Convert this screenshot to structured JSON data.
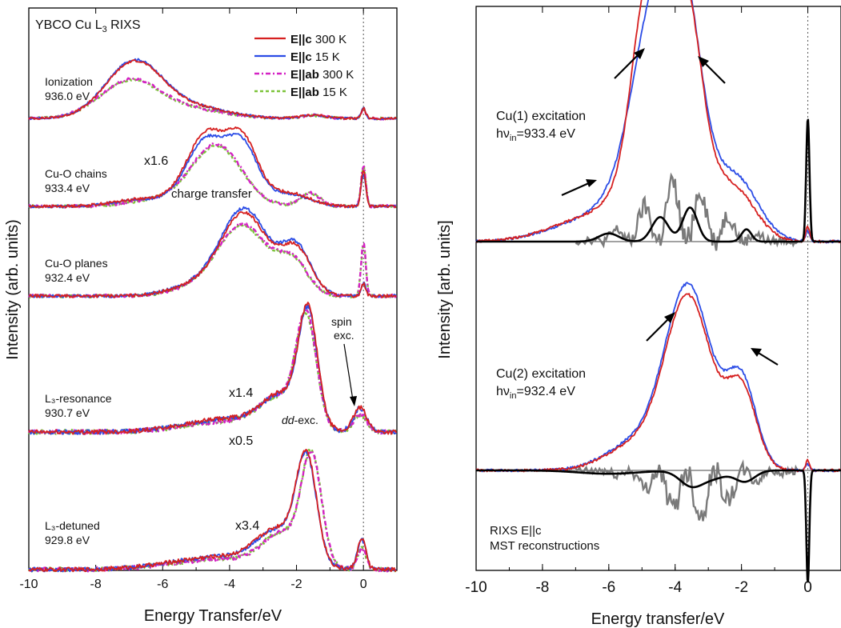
{
  "colors": {
    "c300": "#d62020",
    "c15": "#2b4ce6",
    "ab300": "#d422c4",
    "ab15": "#7cc43a",
    "difference": "#7a7a7a",
    "mst": "#000000"
  },
  "chart_data": [
    {
      "type": "line",
      "title": "YBCO Cu L₃ RIXS",
      "xlabel": "Energy Transfer/eV",
      "ylabel": "Intensity (arb. units)",
      "xlim": [
        -10,
        1
      ],
      "x_ticks": [
        -10,
        -8,
        -6,
        -4,
        -2,
        0
      ],
      "x_tick_labels": [
        "-10",
        "-8",
        "-6",
        "-4",
        "-2",
        "0"
      ],
      "legend_position": "top-right",
      "grid": false,
      "series_legend": [
        {
          "bold": "E||c",
          "rest": " 300 K",
          "style": "solid",
          "color_key": "c300"
        },
        {
          "bold": "E||c",
          "rest": " 15 K",
          "style": "solid",
          "color_key": "c15"
        },
        {
          "bold": "E||ab",
          "rest": " 300 K",
          "style": "dashed",
          "color_key": "ab300"
        },
        {
          "bold": "E||ab",
          "rest": " 15 K",
          "style": "dashed",
          "color_key": "ab15"
        }
      ],
      "panels": [
        {
          "label_line1": "Ionization",
          "label_line2": "936.0 eV",
          "scale_labels": [],
          "peak_values": {
            "c300": 0.9,
            "c15": 0.92,
            "ab300": 0.62,
            "ab15": 0.6
          },
          "components": {
            "c": [
              {
                "center": -6.85,
                "width": 0.85,
                "amp": 1.0
              },
              {
                "center": -5.0,
                "width": 1.0,
                "amp": 0.18
              },
              {
                "center": 0.0,
                "width": 0.07,
                "amp": 0.18
              },
              {
                "center": -1.5,
                "width": 0.35,
                "amp": 0.06
              }
            ],
            "ab": [
              {
                "center": -6.95,
                "width": 0.9,
                "amp": 1.0
              },
              {
                "center": -5.0,
                "width": 1.0,
                "amp": 0.2
              },
              {
                "center": 0.0,
                "width": 0.07,
                "amp": 0.25
              },
              {
                "center": -1.5,
                "width": 0.35,
                "amp": 0.08
              }
            ]
          }
        },
        {
          "label_line1": "Cu-O chains",
          "label_line2": "933.4 eV",
          "scale_labels": [
            {
              "text": "x1.6",
              "x": -5.9,
              "level": 0.62
            },
            {
              "text": "charge transfer",
              "x": -4.4,
              "level": -0.12
            }
          ],
          "peak_values": {
            "c300": 0.98,
            "c15": 0.9,
            "ab300": 0.78,
            "ab15": 0.76
          },
          "components": {
            "c": [
              {
                "center": -4.75,
                "width": 0.55,
                "amp": 0.85
              },
              {
                "center": -3.6,
                "width": 0.45,
                "amp": 0.8
              },
              {
                "center": -4.2,
                "width": 0.8,
                "amp": 0.35
              },
              {
                "center": -6.5,
                "width": 0.9,
                "amp": 0.12
              },
              {
                "center": -2.2,
                "width": 0.6,
                "amp": 0.2
              },
              {
                "center": 0.0,
                "width": 0.07,
                "amp": 0.55
              }
            ],
            "ab": [
              {
                "center": -4.4,
                "width": 0.75,
                "amp": 1.0
              },
              {
                "center": -1.6,
                "width": 0.3,
                "amp": 0.22
              },
              {
                "center": -6.3,
                "width": 0.8,
                "amp": 0.1
              },
              {
                "center": 0.0,
                "width": 0.07,
                "amp": 0.65
              }
            ]
          }
        },
        {
          "label_line1": "Cu-O planes",
          "label_line2": "932.4 eV",
          "scale_labels": [],
          "peak_values": {
            "c300": 0.95,
            "c15": 1.0,
            "ab300": 0.82,
            "ab15": 0.8
          },
          "components": {
            "c": [
              {
                "center": -3.55,
                "width": 0.7,
                "amp": 1.0
              },
              {
                "center": -2.0,
                "width": 0.45,
                "amp": 0.55
              },
              {
                "center": -5.0,
                "width": 0.8,
                "amp": 0.12
              },
              {
                "center": 0.0,
                "width": 0.07,
                "amp": 0.15
              }
            ],
            "ab": [
              {
                "center": -3.6,
                "width": 0.75,
                "amp": 1.0
              },
              {
                "center": -2.1,
                "width": 0.45,
                "amp": 0.45
              },
              {
                "center": -5.0,
                "width": 0.8,
                "amp": 0.1
              },
              {
                "center": 0.0,
                "width": 0.07,
                "amp": 0.75
              }
            ]
          }
        },
        {
          "label_line1": "L₃-resonance",
          "label_line2": "930.7 eV",
          "scale_labels": [
            {
              "text": "x1.4",
              "x": -3.5,
              "level": 0.47
            },
            {
              "text": "x0.5",
              "x": -3.6,
              "level": -0.1
            },
            {
              "text": "dd-exc.",
              "x": -1.95,
              "level": -0.03,
              "italic_prefix": "dd"
            }
          ],
          "annotation": {
            "text_line1": "spin",
            "text_line2": "exc.",
            "arrow_from_x": -0.35,
            "arrow_to_x": -0.2
          },
          "peak_values": {
            "c300": 1.0,
            "c15": 0.98,
            "ab300": 0.95,
            "ab15": 0.93
          },
          "components": {
            "c": [
              {
                "center": -1.65,
                "width": 0.28,
                "amp": 1.0
              },
              {
                "center": -2.4,
                "width": 0.6,
                "amp": 0.3
              },
              {
                "center": -4.0,
                "width": 1.3,
                "amp": 0.12
              },
              {
                "center": -0.1,
                "width": 0.2,
                "amp": 0.22
              }
            ],
            "ab": [
              {
                "center": -1.7,
                "width": 0.3,
                "amp": 1.0
              },
              {
                "center": -2.5,
                "width": 0.6,
                "amp": 0.28
              },
              {
                "center": -4.0,
                "width": 1.3,
                "amp": 0.1
              },
              {
                "center": -0.1,
                "width": 0.2,
                "amp": 0.16
              }
            ]
          }
        },
        {
          "label_line1": "L₃-detuned",
          "label_line2": "929.8 eV",
          "scale_labels": [
            {
              "text": "x3.4",
              "x": -3.0,
              "level": 0.4
            }
          ],
          "peak_values": {
            "c300": 1.0,
            "c15": 0.98,
            "ab300": 0.99,
            "ab15": 1.0
          },
          "components": {
            "c": [
              {
                "center": -1.7,
                "width": 0.3,
                "amp": 1.0
              },
              {
                "center": -2.5,
                "width": 0.65,
                "amp": 0.35
              },
              {
                "center": -4.2,
                "width": 1.5,
                "amp": 0.13
              },
              {
                "center": -0.05,
                "width": 0.13,
                "amp": 0.3
              }
            ],
            "ab": [
              {
                "center": -1.55,
                "width": 0.3,
                "amp": 1.0
              },
              {
                "center": -2.4,
                "width": 0.6,
                "amp": 0.3
              },
              {
                "center": -4.2,
                "width": 1.5,
                "amp": 0.1
              },
              {
                "center": -0.05,
                "width": 0.13,
                "amp": 0.2
              }
            ]
          }
        }
      ]
    },
    {
      "type": "line",
      "xlabel": "Energy transfer/eV",
      "ylabel": "Intensity [arb. units]",
      "xlim": [
        -10,
        1
      ],
      "x_ticks": [
        -10,
        -8,
        -6,
        -4,
        -2,
        0
      ],
      "x_tick_labels": [
        "-10",
        "-8",
        "-6",
        "-4",
        "-2",
        "0"
      ],
      "grid": false,
      "bottom_note_line1": "RIXS E||c",
      "bottom_note_line2": "MST reconstructions",
      "panels": [
        {
          "label_line1": "Cu(1) excitation",
          "label_line2_prefix": "hν",
          "label_line2_sub": "in",
          "label_line2_suffix": "=933.4 eV",
          "arrows": [
            {
              "x": -4.9,
              "dir": "up-left"
            },
            {
              "x": -3.15,
              "dir": "up-right"
            },
            {
              "x": -6.55,
              "dir": "up-right-low"
            }
          ],
          "components": {
            "c300": [
              {
                "center": -4.85,
                "width": 0.45,
                "amp": 0.7
              },
              {
                "center": -3.65,
                "width": 0.45,
                "amp": 0.7
              },
              {
                "center": -4.25,
                "width": 0.9,
                "amp": 0.55
              },
              {
                "center": -6.3,
                "width": 1.3,
                "amp": 0.12
              },
              {
                "center": -2.2,
                "width": 0.65,
                "amp": 0.22
              },
              {
                "center": 0.0,
                "width": 0.06,
                "amp": 0.07
              }
            ],
            "c15": [
              {
                "center": -4.5,
                "width": 0.7,
                "amp": 0.7
              },
              {
                "center": -3.6,
                "width": 0.45,
                "amp": 0.45
              },
              {
                "center": -4.2,
                "width": 1.0,
                "amp": 0.5
              },
              {
                "center": -6.3,
                "width": 1.3,
                "amp": 0.11
              },
              {
                "center": -2.1,
                "width": 0.65,
                "amp": 0.25
              },
              {
                "center": 0.0,
                "width": 0.06,
                "amp": 0.05
              }
            ],
            "mst": [
              {
                "center": -6.0,
                "width": 0.3,
                "amp": 0.06
              },
              {
                "center": -4.45,
                "width": 0.25,
                "amp": 0.18
              },
              {
                "center": -3.55,
                "width": 0.22,
                "amp": 0.25
              },
              {
                "center": -1.85,
                "width": 0.15,
                "amp": 0.09
              },
              {
                "center": 0.0,
                "width": 0.05,
                "amp": 0.9
              }
            ],
            "diff_peak": 0.27
          }
        },
        {
          "label_line1": "Cu(2) excitation",
          "label_line2_prefix": "hν",
          "label_line2_sub": "in",
          "label_line2_suffix": "=932.4 eV",
          "arrows": [
            {
              "x": -4.55,
              "dir": "up-right"
            },
            {
              "x": -1.2,
              "dir": "up-left"
            }
          ],
          "components": {
            "c300": [
              {
                "center": -3.6,
                "width": 0.7,
                "amp": 0.82
              },
              {
                "center": -2.0,
                "width": 0.45,
                "amp": 0.38
              },
              {
                "center": -5.2,
                "width": 0.9,
                "amp": 0.12
              },
              {
                "center": 0.0,
                "width": 0.06,
                "amp": 0.05
              }
            ],
            "c15": [
              {
                "center": -3.6,
                "width": 0.7,
                "amp": 0.87
              },
              {
                "center": -2.0,
                "width": 0.45,
                "amp": 0.42
              },
              {
                "center": -5.2,
                "width": 0.9,
                "amp": 0.13
              },
              {
                "center": 0.0,
                "width": 0.06,
                "amp": 0.03
              }
            ],
            "mst": [
              {
                "center": -6.0,
                "width": 0.9,
                "amp": -0.03
              },
              {
                "center": -3.5,
                "width": 0.35,
                "amp": -0.14
              },
              {
                "center": -1.9,
                "width": 0.3,
                "amp": -0.1
              },
              {
                "center": -2.8,
                "width": 0.35,
                "amp": -0.06
              },
              {
                "center": 0.0,
                "width": 0.045,
                "amp": -1.0
              }
            ],
            "diff_peak": -0.22
          }
        }
      ]
    }
  ]
}
